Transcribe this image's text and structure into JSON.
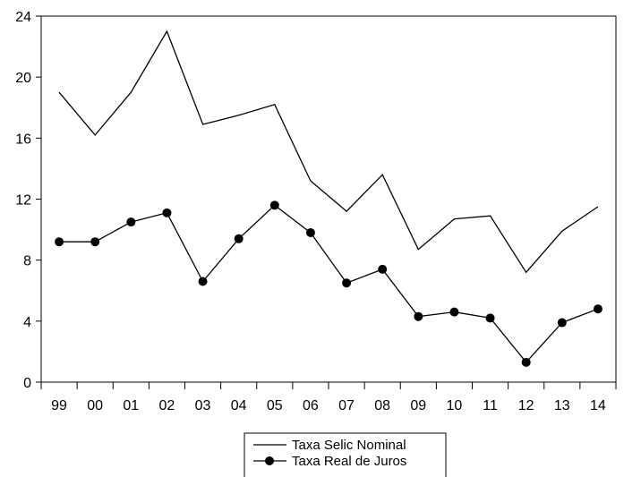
{
  "chart_data": {
    "type": "line",
    "title": "",
    "xlabel": "",
    "ylabel": "",
    "categories": [
      "99",
      "00",
      "01",
      "02",
      "03",
      "04",
      "05",
      "06",
      "07",
      "08",
      "09",
      "10",
      "11",
      "12",
      "13",
      "14"
    ],
    "ylim": [
      0,
      24
    ],
    "yticks": [
      0,
      4,
      8,
      12,
      16,
      20,
      24
    ],
    "grid": false,
    "legend_position": "bottom-center",
    "series": [
      {
        "name": "Taxa Selic Nominal",
        "marker": "none",
        "color": "#000000",
        "values": [
          19.0,
          16.2,
          19.0,
          23.0,
          16.9,
          17.5,
          18.2,
          13.2,
          11.2,
          13.6,
          8.7,
          10.7,
          10.9,
          7.2,
          9.9,
          11.5
        ]
      },
      {
        "name": "Taxa Real de Juros",
        "marker": "circle",
        "color": "#000000",
        "values": [
          9.2,
          9.2,
          10.5,
          11.1,
          6.6,
          9.4,
          11.6,
          9.8,
          6.5,
          7.4,
          4.3,
          4.6,
          4.2,
          1.3,
          3.9,
          4.8
        ]
      }
    ]
  }
}
